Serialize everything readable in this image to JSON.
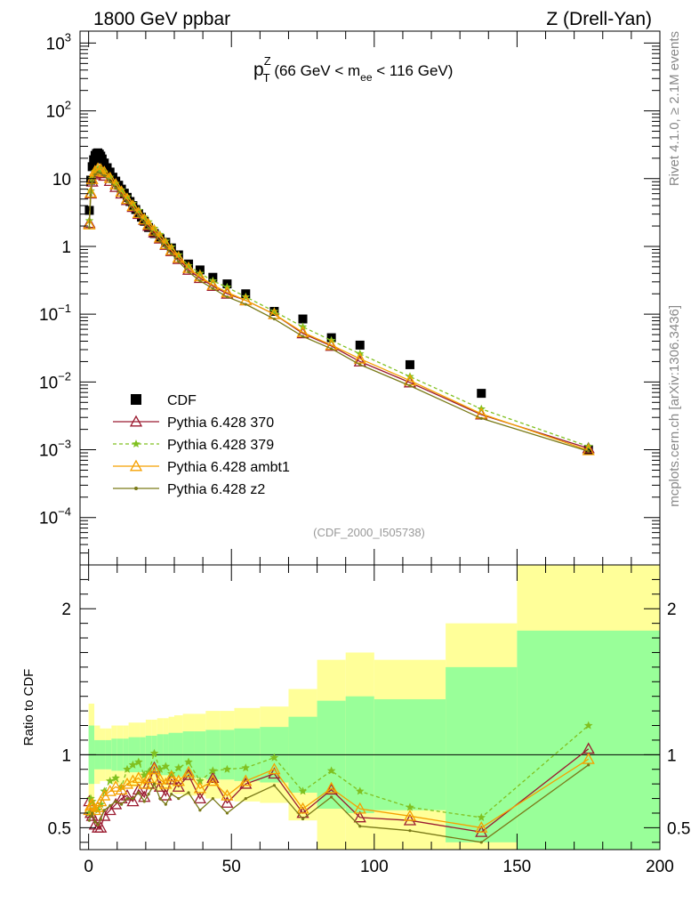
{
  "header": {
    "left_title": "1800 GeV ppbar",
    "right_title": "Z (Drell-Yan)"
  },
  "side_labels": {
    "rivet": "Rivet 4.1.0, ≥ 2.1M events",
    "mcplots": "mcplots.cern.ch [arXiv:1306.3436]"
  },
  "main_title": {
    "p": "p",
    "sup": "Z",
    "sub": "T",
    "open": " (66 GeV < m",
    "ee": "ee",
    "close": " < 116 GeV)"
  },
  "analysis_label": "(CDF_2000_I505738)",
  "colors": {
    "cdf": "#000000",
    "p370": "#9b1b30",
    "p379": "#80c020",
    "ambt1": "#f5a000",
    "z2": "#7a7a18",
    "band_outer": "#ffff99",
    "band_inner": "#99ff99"
  },
  "chart_data": [
    {
      "type": "scatter",
      "name": "main",
      "yscale": "log",
      "xlim": [
        -3,
        200
      ],
      "ylim": [
        2e-05,
        1500
      ],
      "y_ticks": [
        {
          "base": "10",
          "exp": "3"
        },
        {
          "base": "10",
          "exp": "2"
        },
        {
          "base": "10",
          "exp": ""
        },
        {
          "base": "1",
          "exp": ""
        },
        {
          "base": "10",
          "exp": "−1"
        },
        {
          "base": "10",
          "exp": "−2"
        },
        {
          "base": "10",
          "exp": "−3"
        },
        {
          "base": "10",
          "exp": "−4"
        }
      ],
      "y_tick_values": [
        1000,
        100,
        10,
        1,
        0.1,
        0.01,
        0.001,
        0.0001
      ],
      "legend": [
        "CDF",
        "Pythia 6.428 370",
        "Pythia 6.428 379",
        "Pythia 6.428 ambt1",
        "Pythia 6.428 z2"
      ],
      "legend_position": "middle-left",
      "series": [
        {
          "name": "CDF",
          "x": [
            0.25,
            0.75,
            1.25,
            1.75,
            2.25,
            2.75,
            3.25,
            3.75,
            4.25,
            4.75,
            5.5,
            6.5,
            7.5,
            8.5,
            9.5,
            10.5,
            11.5,
            12.5,
            13.5,
            14.5,
            15.5,
            16.5,
            17.5,
            18.5,
            19.5,
            21,
            23,
            25,
            27,
            29,
            31.5,
            35,
            39,
            43.5,
            48.5,
            55,
            65,
            75,
            85,
            95,
            112.5,
            137.5,
            175
          ],
          "y": [
            3.4,
            9.5,
            15,
            19,
            22,
            23.5,
            24,
            23,
            21.5,
            19.5,
            17,
            14.5,
            12.5,
            10.5,
            9.2,
            8.0,
            7.0,
            6.1,
            5.3,
            4.6,
            4.0,
            3.5,
            3.05,
            2.7,
            2.35,
            1.9,
            1.55,
            1.3,
            1.15,
            0.95,
            0.75,
            0.55,
            0.45,
            0.35,
            0.28,
            0.2,
            0.11,
            0.085,
            0.045,
            0.035,
            0.018,
            0.0068,
            0.001
          ]
        },
        {
          "name": "Pythia 6.428 370",
          "x": [
            0.25,
            0.75,
            1.25,
            2.25,
            3.25,
            4.25,
            5.5,
            7.5,
            9.5,
            11.5,
            13.5,
            15.5,
            17.5,
            19.5,
            21,
            23,
            25,
            27,
            29,
            31.5,
            35,
            39,
            43.5,
            48.5,
            55,
            65,
            75,
            85,
            95,
            112.5,
            137.5,
            175
          ],
          "y": [
            2.2,
            6.0,
            9.0,
            11.5,
            12.5,
            12.0,
            11.0,
            9.2,
            7.5,
            6.0,
            4.8,
            3.8,
            3.0,
            2.45,
            2.0,
            1.6,
            1.3,
            1.05,
            0.85,
            0.65,
            0.45,
            0.34,
            0.26,
            0.2,
            0.16,
            0.1,
            0.052,
            0.034,
            0.02,
            0.0098,
            0.0033,
            0.00105
          ]
        },
        {
          "name": "Pythia 6.428 379",
          "x": [
            0.25,
            0.75,
            1.25,
            2.25,
            3.25,
            4.25,
            5.5,
            7.5,
            9.5,
            11.5,
            13.5,
            15.5,
            17.5,
            19.5,
            21,
            23,
            25,
            27,
            29,
            31.5,
            35,
            39,
            43.5,
            48.5,
            55,
            65,
            75,
            85,
            95,
            112.5,
            137.5,
            175
          ],
          "y": [
            2.4,
            6.6,
            10.0,
            12.8,
            13.8,
            13.5,
            12.5,
            10.5,
            8.5,
            6.8,
            5.4,
            4.3,
            3.4,
            2.7,
            2.3,
            1.85,
            1.5,
            1.2,
            0.98,
            0.75,
            0.52,
            0.4,
            0.31,
            0.25,
            0.18,
            0.11,
            0.065,
            0.041,
            0.026,
            0.012,
            0.004,
            0.00112
          ]
        },
        {
          "name": "Pythia 6.428 ambt1",
          "x": [
            0.25,
            0.75,
            1.25,
            2.25,
            3.25,
            4.25,
            5.5,
            7.5,
            9.5,
            11.5,
            13.5,
            15.5,
            17.5,
            19.5,
            21,
            23,
            25,
            27,
            29,
            31.5,
            35,
            39,
            43.5,
            48.5,
            55,
            65,
            75,
            85,
            95,
            112.5,
            137.5,
            175
          ],
          "y": [
            2.1,
            6.2,
            9.8,
            12.8,
            14.0,
            13.6,
            12.5,
            10.2,
            8.2,
            6.4,
            5.0,
            3.95,
            3.1,
            2.5,
            2.1,
            1.7,
            1.35,
            1.08,
            0.88,
            0.68,
            0.48,
            0.36,
            0.27,
            0.21,
            0.16,
            0.1,
            0.054,
            0.035,
            0.022,
            0.0105,
            0.0034,
            0.00098
          ]
        },
        {
          "name": "Pythia 6.428 z2",
          "x": [
            0.25,
            0.75,
            1.25,
            2.25,
            3.25,
            4.25,
            5.5,
            7.5,
            9.5,
            11.5,
            13.5,
            15.5,
            17.5,
            19.5,
            21,
            23,
            25,
            27,
            29,
            31.5,
            35,
            39,
            43.5,
            48.5,
            55,
            65,
            75,
            85,
            95,
            112.5,
            137.5,
            175
          ],
          "y": [
            1.9,
            5.7,
            9.0,
            11.5,
            12.4,
            12.0,
            11.0,
            9.0,
            7.3,
            5.7,
            4.5,
            3.55,
            2.8,
            2.25,
            1.85,
            1.5,
            1.2,
            0.97,
            0.78,
            0.6,
            0.42,
            0.31,
            0.24,
            0.18,
            0.14,
            0.085,
            0.047,
            0.031,
            0.018,
            0.0088,
            0.0029,
            0.00095
          ]
        }
      ]
    },
    {
      "type": "line",
      "name": "ratio",
      "ylabel": "Ratio to CDF",
      "xlim": [
        -3,
        200
      ],
      "ylim": [
        0.35,
        2.3
      ],
      "x_ticks": [
        "0",
        "50",
        "100",
        "150",
        "200"
      ],
      "x_tick_values": [
        0,
        50,
        100,
        150,
        200
      ],
      "y_ticks": [
        "0.5",
        "1",
        "2"
      ],
      "y_tick_values": [
        0.5,
        1,
        2
      ],
      "reference_line": 1,
      "bands": {
        "x_edges": [
          0,
          2,
          4,
          6,
          8,
          10,
          12,
          14,
          16,
          18,
          20,
          22,
          24,
          26,
          28,
          30,
          33,
          37,
          41,
          46,
          51,
          60,
          70,
          80,
          90,
          100,
          125,
          150,
          200
        ],
        "outer_half_width": [
          0.35,
          0.2,
          0.18,
          0.18,
          0.2,
          0.2,
          0.2,
          0.22,
          0.22,
          0.22,
          0.24,
          0.24,
          0.25,
          0.25,
          0.26,
          0.27,
          0.28,
          0.28,
          0.3,
          0.3,
          0.32,
          0.33,
          0.45,
          0.65,
          0.7,
          0.65,
          0.9,
          1.4
        ],
        "inner_half_width": [
          0.2,
          0.1,
          0.1,
          0.1,
          0.11,
          0.11,
          0.11,
          0.12,
          0.12,
          0.12,
          0.13,
          0.13,
          0.14,
          0.14,
          0.15,
          0.15,
          0.16,
          0.16,
          0.17,
          0.17,
          0.18,
          0.19,
          0.26,
          0.37,
          0.4,
          0.38,
          0.6,
          0.85
        ]
      },
      "series": [
        {
          "name": "Pythia 6.428 370",
          "x": [
            0.25,
            0.75,
            1.25,
            2.25,
            3.25,
            4.25,
            5.5,
            7.5,
            9.5,
            11.5,
            13.5,
            15.5,
            17.5,
            19.5,
            21,
            23,
            25,
            27,
            29,
            31.5,
            35,
            39,
            43.5,
            48.5,
            55,
            65,
            75,
            85,
            95,
            112.5,
            137.5,
            175
          ],
          "y": [
            0.68,
            0.6,
            0.58,
            0.52,
            0.5,
            0.5,
            0.58,
            0.62,
            0.66,
            0.7,
            0.72,
            0.68,
            0.76,
            0.71,
            0.8,
            0.91,
            0.78,
            0.72,
            0.83,
            0.78,
            0.86,
            0.7,
            0.84,
            0.67,
            0.8,
            0.87,
            0.6,
            0.76,
            0.57,
            0.55,
            0.47,
            1.04
          ]
        },
        {
          "name": "Pythia 6.428 379",
          "x": [
            0.25,
            0.75,
            1.25,
            2.25,
            3.25,
            4.25,
            5.5,
            7.5,
            9.5,
            11.5,
            13.5,
            15.5,
            17.5,
            19.5,
            21,
            23,
            25,
            27,
            29,
            31.5,
            35,
            39,
            43.5,
            48.5,
            55,
            65,
            75,
            85,
            95,
            112.5,
            137.5,
            175
          ],
          "y": [
            0.6,
            0.7,
            0.68,
            0.63,
            0.62,
            0.66,
            0.75,
            0.82,
            0.84,
            0.78,
            0.9,
            0.93,
            0.95,
            0.86,
            0.88,
            1.01,
            0.9,
            0.92,
            0.87,
            0.91,
            0.95,
            0.82,
            0.89,
            0.9,
            0.91,
            0.98,
            0.75,
            0.89,
            0.75,
            0.64,
            0.57,
            1.2
          ]
        },
        {
          "name": "Pythia 6.428 ambt1",
          "x": [
            0.25,
            0.75,
            1.25,
            2.25,
            3.25,
            4.25,
            5.5,
            7.5,
            9.5,
            11.5,
            13.5,
            15.5,
            17.5,
            19.5,
            21,
            23,
            25,
            27,
            29,
            31.5,
            35,
            39,
            43.5,
            48.5,
            55,
            65,
            75,
            85,
            95,
            112.5,
            137.5,
            175
          ],
          "y": [
            0.62,
            0.65,
            0.66,
            0.62,
            0.64,
            0.68,
            0.72,
            0.75,
            0.78,
            0.76,
            0.8,
            0.82,
            0.84,
            0.8,
            0.84,
            0.9,
            0.83,
            0.8,
            0.85,
            0.82,
            0.88,
            0.77,
            0.82,
            0.72,
            0.82,
            0.9,
            0.63,
            0.77,
            0.63,
            0.58,
            0.5,
            0.97
          ]
        },
        {
          "name": "Pythia 6.428 z2",
          "x": [
            0.25,
            0.75,
            1.25,
            2.25,
            3.25,
            4.25,
            5.5,
            7.5,
            9.5,
            11.5,
            13.5,
            15.5,
            17.5,
            19.5,
            21,
            23,
            25,
            27,
            29,
            31.5,
            35,
            39,
            43.5,
            48.5,
            55,
            65,
            75,
            85,
            95,
            112.5,
            137.5,
            175
          ],
          "y": [
            0.55,
            0.58,
            0.6,
            0.54,
            0.52,
            0.56,
            0.62,
            0.65,
            0.68,
            0.66,
            0.7,
            0.7,
            0.74,
            0.68,
            0.73,
            0.8,
            0.7,
            0.66,
            0.73,
            0.7,
            0.74,
            0.62,
            0.7,
            0.6,
            0.7,
            0.79,
            0.56,
            0.71,
            0.51,
            0.48,
            0.4,
            0.93
          ]
        }
      ]
    }
  ]
}
